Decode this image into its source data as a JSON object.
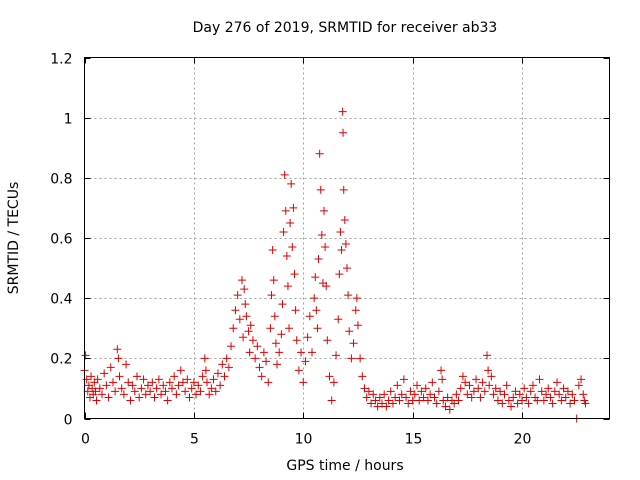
{
  "chart_data": {
    "type": "scatter",
    "title": "Day 276 of 2019, SRMTID for receiver ab33",
    "xlabel": "GPS time / hours",
    "ylabel": "SRMTID / TECUs",
    "xlim": [
      0,
      24
    ],
    "ylim": [
      0,
      1.2
    ],
    "grid": true,
    "marker": "+",
    "color": "#e00000",
    "x_ticks": [
      0,
      5,
      10,
      15,
      20
    ],
    "x_tick_labels": [
      "0",
      "5",
      "10",
      "15",
      "20"
    ],
    "y_ticks": [
      0,
      0.2,
      0.4,
      0.6,
      0.8,
      1.0,
      1.2
    ],
    "y_tick_labels": [
      "0",
      "0.2",
      "0.4",
      "0.6",
      "0.8",
      "1",
      "1.2"
    ],
    "series": [
      {
        "name": "SRMTID",
        "points": [
          [
            0.0,
            0.16
          ],
          [
            0.05,
            0.21
          ],
          [
            0.1,
            0.13
          ],
          [
            0.15,
            0.09
          ],
          [
            0.2,
            0.11
          ],
          [
            0.25,
            0.07
          ],
          [
            0.3,
            0.14
          ],
          [
            0.35,
            0.1
          ],
          [
            0.4,
            0.08
          ],
          [
            0.45,
            0.12
          ],
          [
            0.5,
            0.09
          ],
          [
            0.55,
            0.06
          ],
          [
            0.6,
            0.13
          ],
          [
            0.7,
            0.1
          ],
          [
            0.8,
            0.08
          ],
          [
            0.9,
            0.15
          ],
          [
            1.0,
            0.11
          ],
          [
            1.1,
            0.07
          ],
          [
            1.2,
            0.17
          ],
          [
            1.3,
            0.12
          ],
          [
            1.4,
            0.09
          ],
          [
            1.5,
            0.23
          ],
          [
            1.55,
            0.2
          ],
          [
            1.6,
            0.14
          ],
          [
            1.7,
            0.1
          ],
          [
            1.8,
            0.08
          ],
          [
            1.9,
            0.18
          ],
          [
            2.0,
            0.12
          ],
          [
            2.1,
            0.06
          ],
          [
            2.2,
            0.11
          ],
          [
            2.3,
            0.09
          ],
          [
            2.4,
            0.14
          ],
          [
            2.5,
            0.07
          ],
          [
            2.6,
            0.1
          ],
          [
            2.7,
            0.13
          ],
          [
            2.8,
            0.08
          ],
          [
            2.9,
            0.11
          ],
          [
            3.0,
            0.09
          ],
          [
            3.1,
            0.12
          ],
          [
            3.2,
            0.07
          ],
          [
            3.3,
            0.1
          ],
          [
            3.4,
            0.13
          ],
          [
            3.5,
            0.08
          ],
          [
            3.6,
            0.11
          ],
          [
            3.7,
            0.09
          ],
          [
            3.8,
            0.06
          ],
          [
            3.9,
            0.12
          ],
          [
            4.0,
            0.1
          ],
          [
            4.1,
            0.14
          ],
          [
            4.2,
            0.08
          ],
          [
            4.3,
            0.11
          ],
          [
            4.4,
            0.16
          ],
          [
            4.5,
            0.12
          ],
          [
            4.6,
            0.09
          ],
          [
            4.7,
            0.13
          ],
          [
            4.8,
            0.07
          ],
          [
            4.9,
            0.1
          ],
          [
            5.0,
            0.12
          ],
          [
            5.1,
            0.08
          ],
          [
            5.2,
            0.11
          ],
          [
            5.3,
            0.09
          ],
          [
            5.4,
            0.14
          ],
          [
            5.5,
            0.2
          ],
          [
            5.55,
            0.16
          ],
          [
            5.6,
            0.12
          ],
          [
            5.7,
            0.08
          ],
          [
            5.8,
            0.1
          ],
          [
            5.9,
            0.13
          ],
          [
            6.0,
            0.09
          ],
          [
            6.1,
            0.15
          ],
          [
            6.2,
            0.11
          ],
          [
            6.3,
            0.18
          ],
          [
            6.4,
            0.14
          ],
          [
            6.5,
            0.2
          ],
          [
            6.6,
            0.17
          ],
          [
            6.7,
            0.24
          ],
          [
            6.8,
            0.3
          ],
          [
            6.9,
            0.36
          ],
          [
            7.0,
            0.41
          ],
          [
            7.1,
            0.33
          ],
          [
            7.2,
            0.46
          ],
          [
            7.25,
            0.27
          ],
          [
            7.3,
            0.43
          ],
          [
            7.35,
            0.38
          ],
          [
            7.4,
            0.34
          ],
          [
            7.5,
            0.29
          ],
          [
            7.55,
            0.22
          ],
          [
            7.6,
            0.31
          ],
          [
            7.7,
            0.26
          ],
          [
            7.8,
            0.2
          ],
          [
            7.9,
            0.24
          ],
          [
            8.0,
            0.17
          ],
          [
            8.1,
            0.14
          ],
          [
            8.2,
            0.22
          ],
          [
            8.3,
            0.19
          ],
          [
            8.4,
            0.12
          ],
          [
            8.5,
            0.3
          ],
          [
            8.55,
            0.41
          ],
          [
            8.6,
            0.56
          ],
          [
            8.65,
            0.46
          ],
          [
            8.7,
            0.34
          ],
          [
            8.75,
            0.25
          ],
          [
            8.8,
            0.18
          ],
          [
            8.9,
            0.22
          ],
          [
            9.0,
            0.28
          ],
          [
            9.05,
            0.38
          ],
          [
            9.1,
            0.62
          ],
          [
            9.15,
            0.81
          ],
          [
            9.2,
            0.69
          ],
          [
            9.25,
            0.54
          ],
          [
            9.3,
            0.44
          ],
          [
            9.35,
            0.3
          ],
          [
            9.4,
            0.65
          ],
          [
            9.45,
            0.78
          ],
          [
            9.5,
            0.57
          ],
          [
            9.55,
            0.7
          ],
          [
            9.6,
            0.48
          ],
          [
            9.65,
            0.36
          ],
          [
            9.7,
            0.26
          ],
          [
            9.8,
            0.16
          ],
          [
            9.9,
            0.22
          ],
          [
            10.0,
            0.12
          ],
          [
            10.1,
            0.19
          ],
          [
            10.2,
            0.27
          ],
          [
            10.3,
            0.34
          ],
          [
            10.4,
            0.22
          ],
          [
            10.5,
            0.4
          ],
          [
            10.55,
            0.47
          ],
          [
            10.6,
            0.36
          ],
          [
            10.65,
            0.3
          ],
          [
            10.7,
            0.53
          ],
          [
            10.75,
            0.88
          ],
          [
            10.8,
            0.76
          ],
          [
            10.85,
            0.61
          ],
          [
            10.9,
            0.45
          ],
          [
            10.95,
            0.69
          ],
          [
            11.0,
            0.57
          ],
          [
            11.05,
            0.44
          ],
          [
            11.1,
            0.26
          ],
          [
            11.2,
            0.14
          ],
          [
            11.3,
            0.06
          ],
          [
            11.4,
            0.12
          ],
          [
            11.5,
            0.21
          ],
          [
            11.6,
            0.33
          ],
          [
            11.65,
            0.48
          ],
          [
            11.7,
            0.62
          ],
          [
            11.75,
            0.56
          ],
          [
            11.8,
            1.02
          ],
          [
            11.82,
            0.95
          ],
          [
            11.85,
            0.76
          ],
          [
            11.9,
            0.66
          ],
          [
            11.95,
            0.58
          ],
          [
            12.0,
            0.5
          ],
          [
            12.05,
            0.41
          ],
          [
            12.1,
            0.29
          ],
          [
            12.2,
            0.2
          ],
          [
            12.3,
            0.25
          ],
          [
            12.4,
            0.36
          ],
          [
            12.45,
            0.4
          ],
          [
            12.5,
            0.31
          ],
          [
            12.6,
            0.2
          ],
          [
            12.7,
            0.14
          ],
          [
            12.8,
            0.1
          ],
          [
            12.9,
            0.07
          ],
          [
            13.0,
            0.09
          ],
          [
            13.1,
            0.05
          ],
          [
            13.2,
            0.08
          ],
          [
            13.3,
            0.06
          ],
          [
            13.4,
            0.04
          ],
          [
            13.5,
            0.07
          ],
          [
            13.6,
            0.05
          ],
          [
            13.7,
            0.08
          ],
          [
            13.8,
            0.04
          ],
          [
            13.9,
            0.06
          ],
          [
            14.0,
            0.09
          ],
          [
            14.1,
            0.05
          ],
          [
            14.2,
            0.07
          ],
          [
            14.3,
            0.11
          ],
          [
            14.4,
            0.06
          ],
          [
            14.5,
            0.08
          ],
          [
            14.6,
            0.13
          ],
          [
            14.7,
            0.07
          ],
          [
            14.8,
            0.05
          ],
          [
            14.9,
            0.09
          ],
          [
            15.0,
            0.06
          ],
          [
            15.1,
            0.08
          ],
          [
            15.2,
            0.11
          ],
          [
            15.3,
            0.06
          ],
          [
            15.4,
            0.09
          ],
          [
            15.5,
            0.07
          ],
          [
            15.6,
            0.1
          ],
          [
            15.7,
            0.06
          ],
          [
            15.8,
            0.08
          ],
          [
            15.9,
            0.12
          ],
          [
            16.0,
            0.07
          ],
          [
            16.1,
            0.05
          ],
          [
            16.2,
            0.09
          ],
          [
            16.3,
            0.16
          ],
          [
            16.35,
            0.13
          ],
          [
            16.4,
            0.06
          ],
          [
            16.5,
            0.04
          ],
          [
            16.6,
            0.07
          ],
          [
            16.7,
            0.03
          ],
          [
            16.8,
            0.06
          ],
          [
            16.9,
            0.05
          ],
          [
            17.0,
            0.08
          ],
          [
            17.1,
            0.06
          ],
          [
            17.2,
            0.1
          ],
          [
            17.3,
            0.14
          ],
          [
            17.4,
            0.12
          ],
          [
            17.5,
            0.08
          ],
          [
            17.6,
            0.11
          ],
          [
            17.7,
            0.07
          ],
          [
            17.8,
            0.09
          ],
          [
            17.9,
            0.13
          ],
          [
            18.0,
            0.1
          ],
          [
            18.1,
            0.07
          ],
          [
            18.2,
            0.12
          ],
          [
            18.3,
            0.09
          ],
          [
            18.4,
            0.21
          ],
          [
            18.45,
            0.16
          ],
          [
            18.5,
            0.11
          ],
          [
            18.6,
            0.14
          ],
          [
            18.7,
            0.08
          ],
          [
            18.8,
            0.1
          ],
          [
            18.9,
            0.06
          ],
          [
            19.0,
            0.09
          ],
          [
            19.1,
            0.05
          ],
          [
            19.2,
            0.08
          ],
          [
            19.3,
            0.11
          ],
          [
            19.4,
            0.06
          ],
          [
            19.5,
            0.04
          ],
          [
            19.6,
            0.07
          ],
          [
            19.7,
            0.09
          ],
          [
            19.8,
            0.05
          ],
          [
            19.9,
            0.08
          ],
          [
            20.0,
            0.06
          ],
          [
            20.1,
            0.1
          ],
          [
            20.2,
            0.07
          ],
          [
            20.3,
            0.05
          ],
          [
            20.4,
            0.09
          ],
          [
            20.5,
            0.11
          ],
          [
            20.6,
            0.07
          ],
          [
            20.7,
            0.06
          ],
          [
            20.8,
            0.13
          ],
          [
            20.9,
            0.09
          ],
          [
            21.0,
            0.06
          ],
          [
            21.1,
            0.08
          ],
          [
            21.2,
            0.1
          ],
          [
            21.3,
            0.07
          ],
          [
            21.4,
            0.05
          ],
          [
            21.5,
            0.09
          ],
          [
            21.6,
            0.12
          ],
          [
            21.7,
            0.08
          ],
          [
            21.8,
            0.06
          ],
          [
            21.9,
            0.1
          ],
          [
            22.0,
            0.07
          ],
          [
            22.1,
            0.09
          ],
          [
            22.2,
            0.05
          ],
          [
            22.3,
            0.08
          ],
          [
            22.4,
            0.06
          ],
          [
            22.5,
            0.0
          ],
          [
            22.6,
            0.11
          ],
          [
            22.7,
            0.13
          ],
          [
            22.8,
            0.08
          ],
          [
            22.85,
            0.06
          ],
          [
            22.9,
            0.05
          ]
        ]
      }
    ]
  }
}
